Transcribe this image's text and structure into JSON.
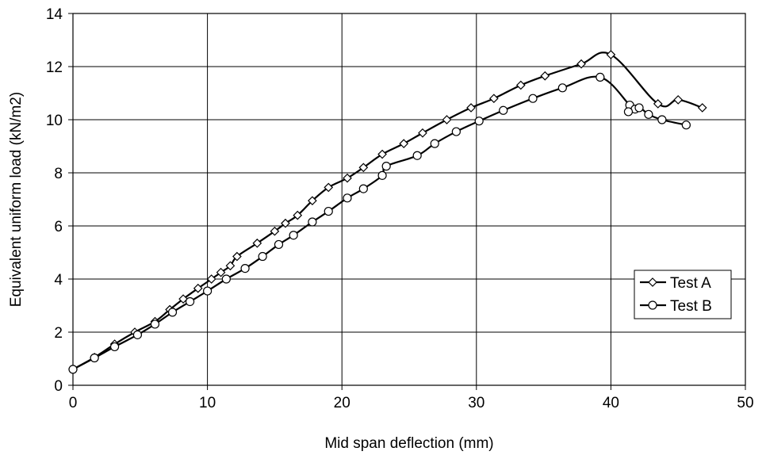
{
  "chart_data": {
    "type": "line",
    "title": "",
    "xlabel": "Mid span deflection (mm)",
    "ylabel": "Equivalent uniform load (kN/m2)",
    "xlim": [
      0,
      50
    ],
    "ylim": [
      0,
      14
    ],
    "xticks": [
      0,
      10,
      20,
      30,
      40,
      50
    ],
    "yticks": [
      0,
      2,
      4,
      6,
      8,
      10,
      12,
      14
    ],
    "xtick_labels": [
      "0",
      "10",
      "20",
      "30",
      "40",
      "50"
    ],
    "ytick_labels": [
      "0",
      "2",
      "4",
      "6",
      "8",
      "10",
      "12",
      "14"
    ],
    "grid": true,
    "legend_position": "lower-right",
    "series": [
      {
        "name": "Test A",
        "marker": "diamond",
        "color": "#000000",
        "points": [
          [
            0.0,
            0.6
          ],
          [
            1.6,
            1.05
          ],
          [
            3.1,
            1.55
          ],
          [
            4.6,
            2.0
          ],
          [
            6.1,
            2.4
          ],
          [
            7.2,
            2.85
          ],
          [
            8.2,
            3.25
          ],
          [
            9.3,
            3.65
          ],
          [
            10.3,
            4.0
          ],
          [
            11.0,
            4.25
          ],
          [
            11.7,
            4.5
          ],
          [
            12.2,
            4.85
          ],
          [
            13.7,
            5.35
          ],
          [
            15.0,
            5.8
          ],
          [
            15.8,
            6.1
          ],
          [
            16.7,
            6.4
          ],
          [
            17.8,
            6.95
          ],
          [
            19.0,
            7.45
          ],
          [
            20.4,
            7.8
          ],
          [
            21.6,
            8.2
          ],
          [
            23.0,
            8.7
          ],
          [
            24.6,
            9.1
          ],
          [
            26.0,
            9.5
          ],
          [
            27.8,
            10.0
          ],
          [
            29.6,
            10.45
          ],
          [
            31.3,
            10.8
          ],
          [
            33.3,
            11.3
          ],
          [
            35.1,
            11.65
          ],
          [
            37.8,
            12.1
          ],
          [
            40.0,
            12.45
          ],
          [
            43.5,
            10.6
          ],
          [
            45.0,
            10.75
          ],
          [
            46.8,
            10.45
          ]
        ]
      },
      {
        "name": "Test B",
        "marker": "circle",
        "color": "#000000",
        "points": [
          [
            0.0,
            0.6
          ],
          [
            1.6,
            1.03
          ],
          [
            3.1,
            1.45
          ],
          [
            4.8,
            1.9
          ],
          [
            6.1,
            2.3
          ],
          [
            7.4,
            2.75
          ],
          [
            8.7,
            3.15
          ],
          [
            10.0,
            3.55
          ],
          [
            11.4,
            4.0
          ],
          [
            12.8,
            4.4
          ],
          [
            14.1,
            4.85
          ],
          [
            15.3,
            5.3
          ],
          [
            16.4,
            5.65
          ],
          [
            17.8,
            6.15
          ],
          [
            19.0,
            6.55
          ],
          [
            20.4,
            7.05
          ],
          [
            21.6,
            7.4
          ],
          [
            23.0,
            7.9
          ],
          [
            23.3,
            8.25
          ],
          [
            25.6,
            8.65
          ],
          [
            26.9,
            9.1
          ],
          [
            28.5,
            9.55
          ],
          [
            30.2,
            9.95
          ],
          [
            32.0,
            10.35
          ],
          [
            34.2,
            10.8
          ],
          [
            36.4,
            11.2
          ],
          [
            39.2,
            11.6
          ],
          [
            41.4,
            10.55
          ],
          [
            41.8,
            10.4
          ],
          [
            41.3,
            10.3
          ],
          [
            42.1,
            10.45
          ],
          [
            42.8,
            10.2
          ],
          [
            43.8,
            10.0
          ],
          [
            45.6,
            9.8
          ]
        ]
      }
    ]
  }
}
